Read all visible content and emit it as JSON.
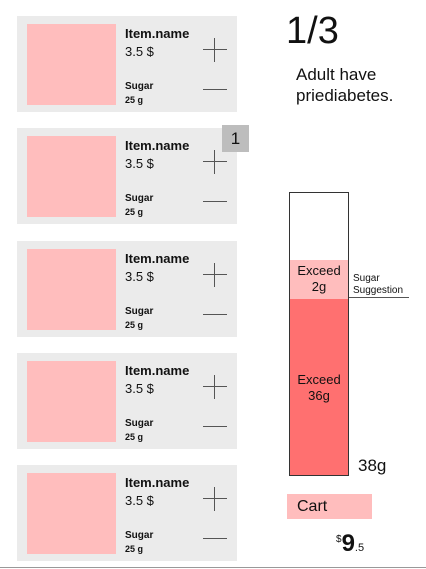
{
  "items": [
    {
      "name": "Item.name",
      "price": "3.5 $",
      "sugar_label": "Sugar",
      "sugar_value": "25 g"
    },
    {
      "name": "Item.name",
      "price": "3.5 $",
      "sugar_label": "Sugar",
      "sugar_value": "25 g"
    },
    {
      "name": "Item.name",
      "price": "3.5 $",
      "sugar_label": "Sugar",
      "sugar_value": "25 g"
    },
    {
      "name": "Item.name",
      "price": "3.5 $",
      "sugar_label": "Sugar",
      "sugar_value": "25 g"
    },
    {
      "name": "Item.name",
      "price": "3.5 $",
      "sugar_label": "Sugar",
      "sugar_value": "25 g"
    }
  ],
  "quantity_badge": "1",
  "stat": {
    "fraction": "1/3",
    "line1": "Adult have",
    "line2": "priediabetes."
  },
  "sugar_bar": {
    "light_line1": "Exceed",
    "light_line2": "2g",
    "dark_line1": "Exceed",
    "dark_line2": "36g",
    "suggestion_line1": "Sugar",
    "suggestion_line2": "Suggestion",
    "total": "38g"
  },
  "cart": {
    "label": "Cart",
    "currency": "$",
    "price_int": "9",
    "price_dec": ".5"
  },
  "colors": {
    "light_pink": "#ffbdbd",
    "red": "#ff7070",
    "card_bg": "#ebebeb",
    "badge_bg": "#bdbdbd"
  }
}
